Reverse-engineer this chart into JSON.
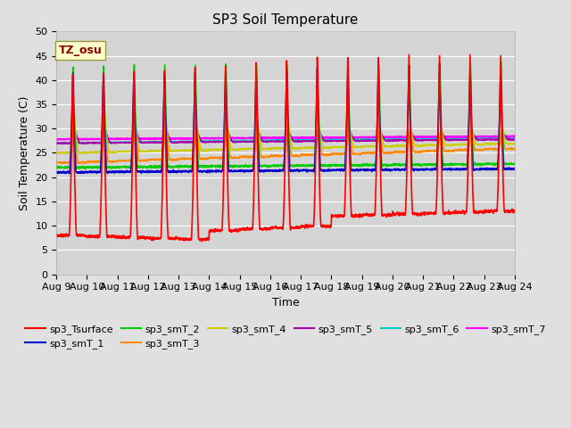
{
  "title": "SP3 Soil Temperature",
  "xlabel": "Time",
  "ylabel": "Soil Temperature (C)",
  "ylim": [
    0,
    50
  ],
  "yticks": [
    0,
    5,
    10,
    15,
    20,
    25,
    30,
    35,
    40,
    45,
    50
  ],
  "tz_label": "TZ_osu",
  "background_color": "#e0e0e0",
  "plot_bg_color": "#d4d4d4",
  "series_colors": {
    "sp3_Tsurface": "#ff0000",
    "sp3_smT_1": "#0000cc",
    "sp3_smT_2": "#00cc00",
    "sp3_smT_3": "#ff8800",
    "sp3_smT_4": "#cccc00",
    "sp3_smT_5": "#aa00aa",
    "sp3_smT_6": "#00cccc",
    "sp3_smT_7": "#ff00ff"
  },
  "x_tick_labels": [
    "Aug 9",
    "Aug 10",
    "Aug 11",
    "Aug 12",
    "Aug 13",
    "Aug 14",
    "Aug 15",
    "Aug 16",
    "Aug 17",
    "Aug 18",
    "Aug 19",
    "Aug 20",
    "Aug 21",
    "Aug 22",
    "Aug 23",
    "Aug 24"
  ],
  "n_days": 15,
  "pts_per_day": 144,
  "legend_fontsize": 8,
  "title_fontsize": 11
}
